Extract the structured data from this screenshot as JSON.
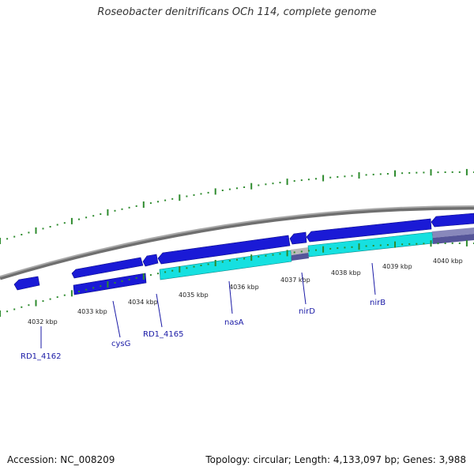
{
  "header": {
    "title": "Roseobacter denitrificans OCh 114, complete genome"
  },
  "footer": {
    "accession": "Accession: NC_008209",
    "summary": "Topology: circular; Length: 4,133,097 bp; Genes: 3,988"
  },
  "colors": {
    "gene_blue": "#1a1ad6",
    "gene_cyan": "#16e0e0",
    "gene_gray": "#b9b9b9",
    "gene_slate": "#555599",
    "backbone": "#8a8a8a",
    "tick_green": "#2e8b2e",
    "label_blue": "#1a1aa6"
  },
  "ticks": [
    {
      "label": "4032 kbp"
    },
    {
      "label": "4033 kbp"
    },
    {
      "label": "4034 kbp"
    },
    {
      "label": "4035 kbp"
    },
    {
      "label": "4036 kbp"
    },
    {
      "label": "4037 kbp"
    },
    {
      "label": "4038 kbp"
    },
    {
      "label": "4039 kbp"
    },
    {
      "label": "4040 kbp"
    }
  ],
  "genes": [
    {
      "label": "RD1_4162"
    },
    {
      "label": "cysG"
    },
    {
      "label": "RD1_4165"
    },
    {
      "label": "nasA"
    },
    {
      "label": "nirD"
    },
    {
      "label": "nirB"
    }
  ]
}
